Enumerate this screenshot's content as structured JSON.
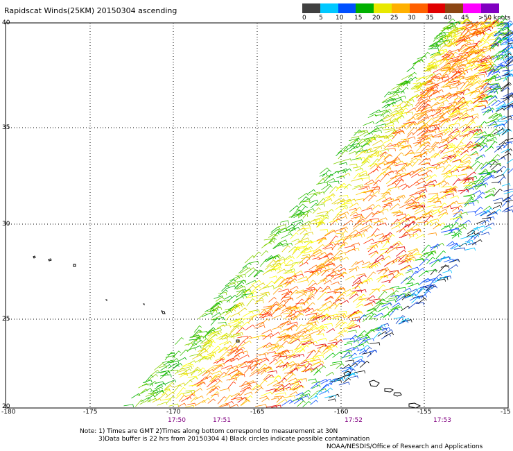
{
  "title": "Rapidscat Winds(25KM) 20150304 ascending",
  "legend": {
    "colors": [
      "#404040",
      "#888888",
      "#00d0ff",
      "#0088ff",
      "#0000ff",
      "#00c000",
      "#00f000",
      "#ffff00",
      "#ffc000",
      "#ff8000",
      "#ff4000",
      "#ff0000",
      "#c04000",
      "#800000",
      "#ff00ff",
      "#c000ff",
      "#8000ff",
      "#600080"
    ],
    "labels": [
      "0",
      "5",
      "10",
      "15",
      "20",
      "25",
      "30",
      "35",
      "40",
      "45",
      ">50 knots"
    ]
  },
  "axes": {
    "x_ticks": [
      "-180",
      "-175",
      "-170",
      "-165",
      "-160",
      "-155",
      "-15"
    ],
    "y_ticks": [
      "40",
      "35",
      "30",
      "25",
      "20"
    ]
  },
  "times": [
    "17:50",
    "17:51",
    "17:52",
    "17:53"
  ],
  "notes": {
    "line1": "Note: 1) Times are GMT 2)Times along bottom correspond to measurement at 30N",
    "line2": "3)Data buffer is 22 hrs from 20150304 4) Black circles indicate possible contamination",
    "line3": "NOAA/NESDIS/Office of Research and Applications"
  },
  "icons": {
    "islands": "island-outline-icon"
  }
}
